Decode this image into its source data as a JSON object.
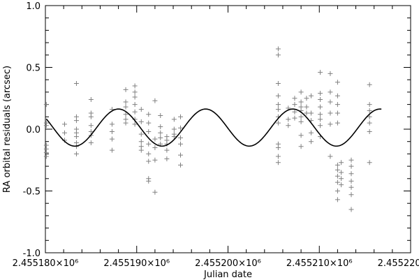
{
  "chart_data": {
    "type": "scatter",
    "xlabel": "Julian date",
    "ylabel": "RA orbital residuals (arcsec)",
    "xlim": [
      2455180,
      2455220
    ],
    "ylim": [
      -1.0,
      1.0
    ],
    "x_unit_label": "×10⁶",
    "x_ticks": [
      2455180,
      2455190,
      2455200,
      2455210,
      2455220
    ],
    "x_tick_labels": [
      "2.455180×10⁶",
      "2.455190×10⁶",
      "2.455200×10⁶",
      "2.455210×10⁶",
      "2.455220×10⁶"
    ],
    "y_ticks": [
      -1.0,
      -0.5,
      0.0,
      0.5,
      1.0
    ],
    "y_tick_labels": [
      "-1.0",
      "-0.5",
      "0.0",
      "0.5",
      "1.0"
    ],
    "grid": false,
    "series": [
      {
        "kind": "scatter",
        "marker": "plus",
        "color": "#808080",
        "points": [
          [
            2455180.1,
            0.2
          ],
          [
            2455180.1,
            0.05
          ],
          [
            2455180.1,
            0.03
          ],
          [
            2455180.1,
            -0.13
          ],
          [
            2455180.1,
            -0.16
          ],
          [
            2455180.1,
            -0.19
          ],
          [
            2455180.1,
            -0.22
          ],
          [
            2455182.1,
            0.04
          ],
          [
            2455182.1,
            -0.03
          ],
          [
            2455182.1,
            -0.09
          ],
          [
            2455183.4,
            0.37
          ],
          [
            2455183.4,
            0.1
          ],
          [
            2455183.4,
            0.07
          ],
          [
            2455183.4,
            0.0
          ],
          [
            2455183.4,
            -0.03
          ],
          [
            2455183.4,
            -0.06
          ],
          [
            2455183.4,
            -0.11
          ],
          [
            2455183.4,
            -0.14
          ],
          [
            2455183.4,
            -0.2
          ],
          [
            2455185.0,
            0.24
          ],
          [
            2455185.0,
            0.13
          ],
          [
            2455185.0,
            0.1
          ],
          [
            2455185.0,
            0.03
          ],
          [
            2455185.0,
            -0.02
          ],
          [
            2455185.0,
            -0.05
          ],
          [
            2455185.0,
            -0.11
          ],
          [
            2455187.3,
            0.16
          ],
          [
            2455187.3,
            0.04
          ],
          [
            2455187.3,
            -0.02
          ],
          [
            2455187.3,
            -0.08
          ],
          [
            2455187.3,
            -0.17
          ],
          [
            2455188.8,
            0.32
          ],
          [
            2455188.8,
            0.22
          ],
          [
            2455188.8,
            0.18
          ],
          [
            2455188.8,
            0.12
          ],
          [
            2455188.8,
            0.08
          ],
          [
            2455188.8,
            0.05
          ],
          [
            2455189.8,
            0.35
          ],
          [
            2455189.8,
            0.3
          ],
          [
            2455189.8,
            0.26
          ],
          [
            2455189.8,
            0.2
          ],
          [
            2455189.8,
            0.14
          ],
          [
            2455189.8,
            0.08
          ],
          [
            2455189.8,
            0.04
          ],
          [
            2455190.5,
            0.16
          ],
          [
            2455190.5,
            0.06
          ],
          [
            2455190.5,
            -0.04
          ],
          [
            2455190.5,
            -0.1
          ],
          [
            2455190.5,
            -0.14
          ],
          [
            2455190.5,
            -0.17
          ],
          [
            2455191.3,
            0.12
          ],
          [
            2455191.3,
            0.05
          ],
          [
            2455191.3,
            -0.02
          ],
          [
            2455191.3,
            -0.12
          ],
          [
            2455191.3,
            -0.2
          ],
          [
            2455191.3,
            -0.26
          ],
          [
            2455191.3,
            -0.4
          ],
          [
            2455191.3,
            -0.42
          ],
          [
            2455192.0,
            0.23
          ],
          [
            2455192.0,
            -0.08
          ],
          [
            2455192.0,
            -0.15
          ],
          [
            2455192.0,
            -0.25
          ],
          [
            2455192.0,
            -0.51
          ],
          [
            2455192.6,
            0.11
          ],
          [
            2455192.6,
            0.02
          ],
          [
            2455192.6,
            -0.03
          ],
          [
            2455192.6,
            -0.07
          ],
          [
            2455192.6,
            -0.12
          ],
          [
            2455193.3,
            -0.06
          ],
          [
            2455193.3,
            -0.09
          ],
          [
            2455193.3,
            -0.12
          ],
          [
            2455193.3,
            -0.17
          ],
          [
            2455193.3,
            -0.24
          ],
          [
            2455194.1,
            0.08
          ],
          [
            2455194.1,
            0.0
          ],
          [
            2455194.1,
            -0.04
          ],
          [
            2455194.1,
            -0.06
          ],
          [
            2455194.8,
            0.1
          ],
          [
            2455194.8,
            0.01
          ],
          [
            2455194.8,
            -0.07
          ],
          [
            2455194.8,
            -0.12
          ],
          [
            2455194.8,
            -0.21
          ],
          [
            2455194.8,
            -0.29
          ],
          [
            2455205.5,
            0.65
          ],
          [
            2455205.5,
            0.6
          ],
          [
            2455205.5,
            0.37
          ],
          [
            2455205.5,
            0.27
          ],
          [
            2455205.5,
            0.2
          ],
          [
            2455205.5,
            0.16
          ],
          [
            2455205.5,
            0.1
          ],
          [
            2455205.5,
            0.05
          ],
          [
            2455205.5,
            -0.12
          ],
          [
            2455205.5,
            -0.15
          ],
          [
            2455205.5,
            -0.22
          ],
          [
            2455205.5,
            -0.27
          ],
          [
            2455206.6,
            0.17
          ],
          [
            2455206.6,
            0.08
          ],
          [
            2455206.6,
            0.03
          ],
          [
            2455207.3,
            0.25
          ],
          [
            2455207.3,
            0.2
          ],
          [
            2455207.3,
            0.14
          ],
          [
            2455207.3,
            0.09
          ],
          [
            2455208.0,
            0.3
          ],
          [
            2455208.0,
            0.22
          ],
          [
            2455208.0,
            0.18
          ],
          [
            2455208.0,
            0.15
          ],
          [
            2455208.0,
            0.1
          ],
          [
            2455208.0,
            0.06
          ],
          [
            2455208.0,
            -0.05
          ],
          [
            2455208.0,
            -0.14
          ],
          [
            2455208.6,
            0.25
          ],
          [
            2455208.6,
            0.18
          ],
          [
            2455208.6,
            0.13
          ],
          [
            2455209.1,
            0.27
          ],
          [
            2455209.1,
            0.13
          ],
          [
            2455209.1,
            0.07
          ],
          [
            2455209.1,
            -0.03
          ],
          [
            2455209.1,
            -0.1
          ],
          [
            2455210.1,
            0.46
          ],
          [
            2455210.1,
            0.29
          ],
          [
            2455210.1,
            0.24
          ],
          [
            2455210.1,
            0.18
          ],
          [
            2455210.1,
            0.12
          ],
          [
            2455210.1,
            0.08
          ],
          [
            2455210.1,
            0.03
          ],
          [
            2455210.1,
            -0.06
          ],
          [
            2455211.2,
            0.45
          ],
          [
            2455211.2,
            0.3
          ],
          [
            2455211.2,
            0.22
          ],
          [
            2455211.2,
            0.13
          ],
          [
            2455211.2,
            0.04
          ],
          [
            2455211.2,
            -0.22
          ],
          [
            2455212.0,
            0.38
          ],
          [
            2455212.0,
            0.27
          ],
          [
            2455212.0,
            0.2
          ],
          [
            2455212.0,
            0.13
          ],
          [
            2455212.0,
            0.05
          ],
          [
            2455212.0,
            -0.29
          ],
          [
            2455212.0,
            -0.33
          ],
          [
            2455212.0,
            -0.38
          ],
          [
            2455212.0,
            -0.43
          ],
          [
            2455212.0,
            -0.5
          ],
          [
            2455212.0,
            -0.57
          ],
          [
            2455212.4,
            -0.27
          ],
          [
            2455212.4,
            -0.35
          ],
          [
            2455212.4,
            -0.4
          ],
          [
            2455212.4,
            -0.45
          ],
          [
            2455213.5,
            -0.25
          ],
          [
            2455213.5,
            -0.3
          ],
          [
            2455213.5,
            -0.36
          ],
          [
            2455213.5,
            -0.42
          ],
          [
            2455213.5,
            -0.47
          ],
          [
            2455213.5,
            -0.53
          ],
          [
            2455213.5,
            -0.65
          ],
          [
            2455215.5,
            0.36
          ],
          [
            2455215.5,
            0.2
          ],
          [
            2455215.5,
            0.15
          ],
          [
            2455215.5,
            0.1
          ],
          [
            2455215.5,
            0.05
          ],
          [
            2455215.5,
            -0.02
          ],
          [
            2455215.5,
            -0.27
          ]
        ]
      },
      {
        "kind": "line",
        "color": "#000000",
        "x_range": [
          2455180.1,
          2455216.8
        ],
        "model": "sinusoid",
        "amplitude": 0.15,
        "offset": 0.013,
        "period_days": 9.55,
        "peak_at": 2455188.0
      }
    ]
  }
}
